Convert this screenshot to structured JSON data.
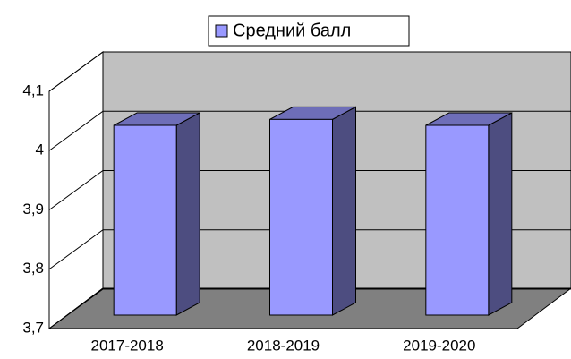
{
  "chart_data": {
    "type": "bar",
    "categories": [
      "2017-2018",
      "2018-2019",
      "2019-2020"
    ],
    "series": [
      {
        "name": "Средний балл",
        "color": "#9999ff",
        "values": [
          4.02,
          4.03,
          4.02
        ]
      }
    ],
    "ylim": [
      3.7,
      4.1
    ],
    "yticks": [
      {
        "value": 3.7,
        "label": "3,7"
      },
      {
        "value": 3.8,
        "label": "3,8"
      },
      {
        "value": 3.9,
        "label": "3,9"
      },
      4,
      {
        "value": 4.1,
        "label": "4,1"
      }
    ],
    "grid": true,
    "legend": "top"
  }
}
